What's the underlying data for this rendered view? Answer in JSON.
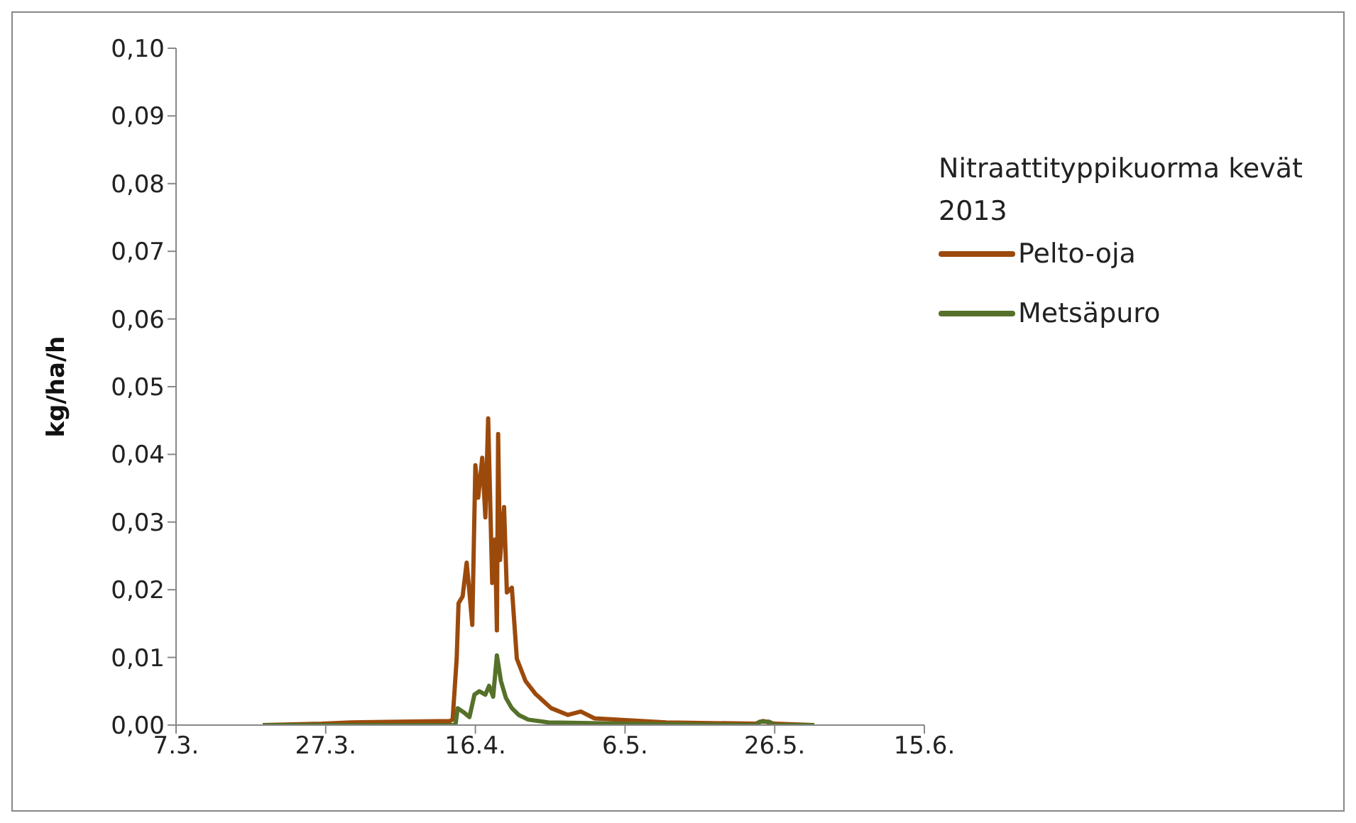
{
  "chart_data": {
    "type": "line",
    "ylabel": "kg/ha/h",
    "legend_title": "Nitraattityppikuorma kevät 2013",
    "legend": "top right",
    "grid": false,
    "marker": "none",
    "line_style": "solid",
    "xlim": [
      "2013-03-07",
      "2013-06-15"
    ],
    "xticks": [
      {
        "value": "2013-03-07",
        "label": "7.3."
      },
      {
        "value": "2013-03-27",
        "label": "27.3."
      },
      {
        "value": "2013-04-16",
        "label": "16.4."
      },
      {
        "value": "2013-05-06",
        "label": "6.5."
      },
      {
        "value": "2013-05-26",
        "label": "26.5."
      },
      {
        "value": "2013-06-15",
        "label": "15.6."
      }
    ],
    "ylim": [
      0,
      0.1
    ],
    "yticks": [
      {
        "value": 0,
        "label": "0,00"
      },
      {
        "value": 0.01,
        "label": "0,01"
      },
      {
        "value": 0.02,
        "label": "0,02"
      },
      {
        "value": 0.03,
        "label": "0,03"
      },
      {
        "value": 0.04,
        "label": "0,04"
      },
      {
        "value": 0.05,
        "label": "0,05"
      },
      {
        "value": 0.06,
        "label": "0,06"
      },
      {
        "value": 0.07,
        "label": "0,07"
      },
      {
        "value": 0.08,
        "label": "0,08"
      },
      {
        "value": 0.09,
        "label": "0,09"
      },
      {
        "value": 0.1,
        "label": "0,10"
      }
    ],
    "series": [
      {
        "name": "Pelto-oja",
        "color": "#9c4a0c",
        "x": [
          "2013-03-18T14:00",
          "2013-03-26T12:00",
          "2013-03-30T10:00",
          "2013-04-12T14:00",
          "2013-04-12T23:00",
          "2013-04-13T12:00",
          "2013-04-13T18:00",
          "2013-04-14T07:00",
          "2013-04-14T20:00",
          "2013-04-15T05:00",
          "2013-04-15T14:00",
          "2013-04-16T00:00",
          "2013-04-16T09:00",
          "2013-04-16T22:00",
          "2013-04-17T08:00",
          "2013-04-17T17:00",
          "2013-04-18T06:00",
          "2013-04-18T15:00",
          "2013-04-18T21:00",
          "2013-04-19T01:00",
          "2013-04-19T07:00",
          "2013-04-19T20:00",
          "2013-04-20T05:00",
          "2013-04-20T21:00",
          "2013-04-21T13:00",
          "2013-04-22T17:00",
          "2013-04-24T01:00",
          "2013-04-26T03:00",
          "2013-04-28T09:00",
          "2013-04-30T02:00",
          "2013-05-01T22:00",
          "2013-05-11T12:00",
          "2013-05-23T10:00",
          "2013-05-24T10:00",
          "2013-05-26T00:00",
          "2013-05-31T07:00"
        ],
        "values": [
          0,
          0.0002,
          0.0004,
          0.0006,
          0.0008,
          0.0098,
          0.018,
          0.019,
          0.024,
          0.0196,
          0.0148,
          0.0384,
          0.0336,
          0.0395,
          0.0307,
          0.0453,
          0.021,
          0.0274,
          0.014,
          0.043,
          0.0244,
          0.0322,
          0.0196,
          0.0203,
          0.0098,
          0.0065,
          0.0046,
          0.0025,
          0.0015,
          0.002,
          0.001,
          0.0004,
          0.0002,
          0.0006,
          0.0002,
          0
        ]
      },
      {
        "name": "Metsäpuro",
        "color": "#56712a",
        "x": [
          "2013-03-18T14:00",
          "2013-04-13T05:00",
          "2013-04-13T09:00",
          "2013-04-13T15:00",
          "2013-04-14T13:00",
          "2013-04-15T05:00",
          "2013-04-15T21:00",
          "2013-04-16T13:00",
          "2013-04-17T08:00",
          "2013-04-17T20:00",
          "2013-04-18T09:00",
          "2013-04-18T21:00",
          "2013-04-19T10:00",
          "2013-04-20T02:00",
          "2013-04-20T21:00",
          "2013-04-21T19:00",
          "2013-04-23T02:00",
          "2013-04-25T18:00",
          "2013-05-05T22:00",
          "2013-05-23T10:00",
          "2013-05-24T00:00",
          "2013-05-25T07:00",
          "2013-05-26T00:00",
          "2013-05-31T07:00"
        ],
        "values": [
          0,
          0,
          0.0003,
          0.0025,
          0.0018,
          0.0012,
          0.0045,
          0.005,
          0.0045,
          0.0058,
          0.0042,
          0.0103,
          0.0065,
          0.004,
          0.0025,
          0.0015,
          0.0008,
          0.0004,
          0.0002,
          0,
          0.0005,
          0.0005,
          0,
          0
        ]
      }
    ]
  }
}
